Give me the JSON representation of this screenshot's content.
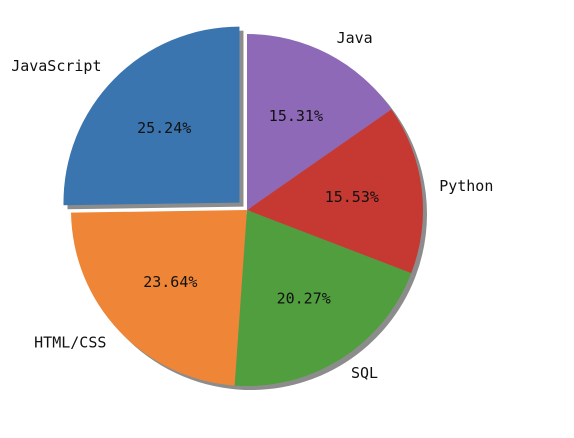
{
  "chart_data": {
    "type": "pie",
    "title": "",
    "labels": [
      "JavaScript",
      "HTML/CSS",
      "SQL",
      "Python",
      "Java"
    ],
    "values": [
      25.24,
      23.64,
      20.27,
      15.53,
      15.31
    ],
    "percent_labels": [
      "25.24%",
      "23.64%",
      "20.27%",
      "15.53%",
      "15.31%"
    ],
    "colors": [
      "#3b75af",
      "#ef8536",
      "#519e3e",
      "#c53932",
      "#8d69b8"
    ],
    "explode": [
      0.06,
      0,
      0,
      0,
      0
    ],
    "start_angle": 90,
    "direction": "counterclockwise",
    "shadow": true,
    "legend": "none"
  }
}
